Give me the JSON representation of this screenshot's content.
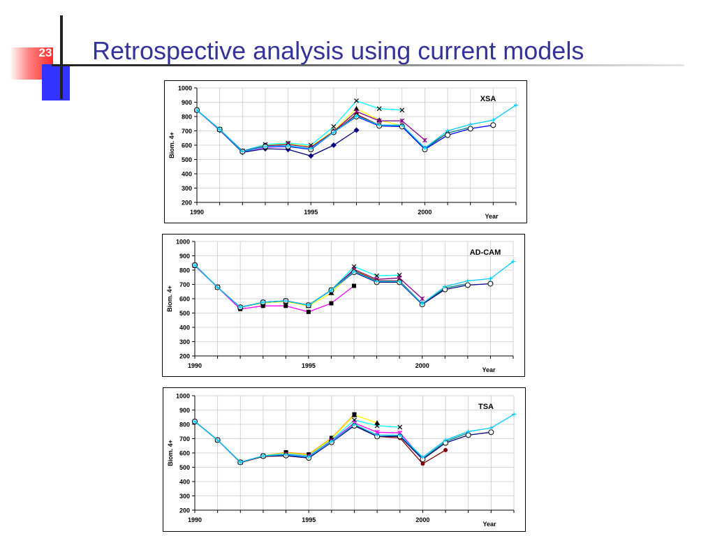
{
  "slide": {
    "number": "23",
    "title": "Retrospective analysis using current models"
  },
  "colors": {
    "title": "#333399",
    "accent_red": "#ff3333",
    "accent_blue": "#3333ff"
  },
  "chart_data": [
    {
      "type": "line",
      "title": "XSA",
      "xlabel": "Year",
      "ylabel": "Biom. 4+",
      "xlim": [
        1990,
        2004
      ],
      "ylim": [
        200,
        1000
      ],
      "yticks": [
        200,
        300,
        400,
        500,
        600,
        700,
        800,
        900,
        1000
      ],
      "xticks": [
        1990,
        1995,
        2000
      ],
      "grid": true,
      "legend": "none",
      "series": [
        {
          "color": "#000080",
          "marker": "diamond",
          "x": [
            1990,
            1991,
            1992,
            1993,
            1994,
            1995,
            1996,
            1997
          ],
          "y": [
            845,
            705,
            550,
            575,
            570,
            525,
            600,
            705
          ]
        },
        {
          "color": "#ff00ff",
          "marker": "square",
          "x": [
            1990,
            1991,
            1992,
            1993,
            1994,
            1995,
            1996,
            1997,
            1998
          ],
          "y": [
            845,
            708,
            555,
            585,
            590,
            575,
            695,
            810,
            735
          ]
        },
        {
          "color": "#ffff00",
          "marker": "triangle",
          "x": [
            1990,
            1991,
            1992,
            1993,
            1994,
            1995,
            1996,
            1997,
            1998,
            1999
          ],
          "y": [
            845,
            710,
            558,
            600,
            610,
            590,
            700,
            855,
            775,
            735
          ]
        },
        {
          "color": "#00ffff",
          "marker": "x",
          "x": [
            1990,
            1991,
            1992,
            1993,
            1994,
            1995,
            1996,
            1997,
            1998,
            1999
          ],
          "y": [
            845,
            710,
            560,
            605,
            615,
            600,
            730,
            910,
            855,
            845
          ]
        },
        {
          "color": "#800080",
          "marker": "star",
          "x": [
            1990,
            1991,
            1992,
            1993,
            1994,
            1995,
            1996,
            1997,
            1998,
            1999,
            2000
          ],
          "y": [
            845,
            710,
            558,
            595,
            605,
            585,
            695,
            835,
            770,
            770,
            635
          ]
        },
        {
          "color": "#800000",
          "marker": "circle",
          "x": [
            1990,
            1991,
            1992,
            1993,
            1994,
            1995,
            1996,
            1997,
            1998,
            1999,
            2000,
            2001
          ],
          "y": [
            845,
            710,
            555,
            590,
            595,
            575,
            690,
            815,
            740,
            740,
            580,
            685
          ]
        },
        {
          "color": "#008080",
          "marker": "none",
          "x": [
            1990,
            1991,
            1992,
            1993,
            1994,
            1995,
            1996,
            1997,
            1998,
            1999,
            2000,
            2001,
            2002
          ],
          "y": [
            845,
            710,
            555,
            590,
            595,
            575,
            690,
            805,
            735,
            735,
            575,
            685,
            725
          ]
        },
        {
          "color": "#0000ff",
          "marker": "open-circle",
          "x": [
            1990,
            1991,
            1992,
            1993,
            1994,
            1995,
            1996,
            1997,
            1998,
            1999,
            2000,
            2001,
            2002,
            2003
          ],
          "y": [
            845,
            710,
            555,
            590,
            590,
            570,
            690,
            800,
            735,
            730,
            570,
            670,
            715,
            740
          ]
        },
        {
          "color": "#00ccff",
          "marker": "plus",
          "x": [
            1990,
            1991,
            1992,
            1993,
            1994,
            1995,
            1996,
            1997,
            1998,
            1999,
            2000,
            2001,
            2002,
            2003,
            2004
          ],
          "y": [
            845,
            710,
            555,
            590,
            595,
            575,
            690,
            805,
            740,
            740,
            580,
            700,
            745,
            775,
            880
          ]
        }
      ]
    },
    {
      "type": "line",
      "title": "AD-CAM",
      "xlabel": "Year",
      "ylabel": "Biom. 4+",
      "xlim": [
        1990,
        2004
      ],
      "ylim": [
        200,
        1000
      ],
      "yticks": [
        200,
        300,
        400,
        500,
        600,
        700,
        800,
        900,
        1000
      ],
      "xticks": [
        1990,
        1995,
        2000
      ],
      "grid": true,
      "legend": "none",
      "series": [
        {
          "color": "#ff00ff",
          "marker": "square",
          "x": [
            1990,
            1991,
            1992,
            1993,
            1994,
            1995,
            1996,
            1997
          ],
          "y": [
            830,
            680,
            528,
            550,
            550,
            508,
            568,
            690
          ]
        },
        {
          "color": "#ffff00",
          "marker": "triangle",
          "x": [
            1990,
            1991,
            1992,
            1993,
            1994,
            1995,
            1996,
            1997,
            1998
          ],
          "y": [
            835,
            680,
            540,
            570,
            580,
            550,
            640,
            800,
            725
          ]
        },
        {
          "color": "#00ffff",
          "marker": "x",
          "x": [
            1990,
            1991,
            1992,
            1993,
            1994,
            1995,
            1996,
            1997,
            1998,
            1999
          ],
          "y": [
            835,
            680,
            540,
            575,
            585,
            555,
            660,
            825,
            760,
            765
          ]
        },
        {
          "color": "#800080",
          "marker": "star",
          "x": [
            1990,
            1991,
            1992,
            1993,
            1994,
            1995,
            1996,
            1997,
            1998,
            1999,
            2000
          ],
          "y": [
            835,
            680,
            540,
            575,
            585,
            555,
            660,
            805,
            735,
            745,
            600
          ]
        },
        {
          "color": "#800000",
          "marker": "circle",
          "x": [
            1990,
            1991,
            1992,
            1993,
            1994,
            1995,
            1996,
            1997,
            1998,
            1999,
            2000,
            2001
          ],
          "y": [
            835,
            680,
            540,
            575,
            585,
            555,
            660,
            795,
            725,
            725,
            565,
            670
          ]
        },
        {
          "color": "#008080",
          "marker": "none",
          "x": [
            1990,
            1991,
            1992,
            1993,
            1994,
            1995,
            1996,
            1997,
            1998,
            1999,
            2000,
            2001,
            2002
          ],
          "y": [
            835,
            680,
            540,
            575,
            585,
            555,
            660,
            790,
            720,
            720,
            560,
            675,
            705
          ]
        },
        {
          "color": "#000080",
          "marker": "open-circle",
          "x": [
            1990,
            1991,
            1992,
            1993,
            1994,
            1995,
            1996,
            1997,
            1998,
            1999,
            2000,
            2001,
            2002,
            2003
          ],
          "y": [
            835,
            680,
            540,
            575,
            585,
            555,
            660,
            785,
            715,
            715,
            560,
            665,
            695,
            705
          ]
        },
        {
          "color": "#00ccff",
          "marker": "plus",
          "x": [
            1990,
            1991,
            1992,
            1993,
            1994,
            1995,
            1996,
            1997,
            1998,
            1999,
            2000,
            2001,
            2002,
            2003,
            2004
          ],
          "y": [
            835,
            680,
            540,
            575,
            585,
            555,
            660,
            790,
            720,
            720,
            565,
            685,
            725,
            740,
            860
          ]
        }
      ]
    },
    {
      "type": "line",
      "title": "TSA",
      "xlabel": "Year",
      "ylabel": "Biom. 4+",
      "xlim": [
        1990,
        2004
      ],
      "ylim": [
        200,
        1000
      ],
      "yticks": [
        200,
        300,
        400,
        500,
        600,
        700,
        800,
        900,
        1000
      ],
      "xticks": [
        1990,
        1995,
        2000
      ],
      "grid": true,
      "legend": "none",
      "series": [
        {
          "color": "#ff8c00",
          "marker": "square",
          "x": [
            1990,
            1991,
            1992,
            1993,
            1994,
            1995,
            1996,
            1997
          ],
          "y": [
            820,
            690,
            535,
            580,
            605,
            590,
            705,
            870
          ]
        },
        {
          "color": "#ffff00",
          "marker": "triangle",
          "x": [
            1990,
            1991,
            1992,
            1993,
            1994,
            1995,
            1996,
            1997,
            1998
          ],
          "y": [
            820,
            690,
            535,
            580,
            600,
            585,
            700,
            865,
            810
          ]
        },
        {
          "color": "#00ffff",
          "marker": "x",
          "x": [
            1990,
            1991,
            1992,
            1993,
            1994,
            1995,
            1996,
            1997,
            1998,
            1999
          ],
          "y": [
            820,
            690,
            535,
            580,
            595,
            580,
            690,
            830,
            790,
            780
          ]
        },
        {
          "color": "#ff00ff",
          "marker": "star",
          "x": [
            1990,
            1991,
            1992,
            1993,
            1994,
            1995,
            1996,
            1997,
            1998,
            1999,
            2000
          ],
          "y": [
            820,
            690,
            535,
            578,
            590,
            575,
            685,
            810,
            745,
            740,
            560
          ]
        },
        {
          "color": "#800000",
          "marker": "circle",
          "x": [
            1990,
            1991,
            1992,
            1993,
            1994,
            1995,
            1996,
            1997,
            1998,
            1999,
            2000,
            2001
          ],
          "y": [
            820,
            690,
            532,
            575,
            580,
            565,
            675,
            795,
            715,
            705,
            525,
            620
          ]
        },
        {
          "color": "#008080",
          "marker": "none",
          "x": [
            1990,
            1991,
            1992,
            1993,
            1994,
            1995,
            1996,
            1997,
            1998,
            1999,
            2000,
            2001,
            2002
          ],
          "y": [
            820,
            690,
            535,
            578,
            585,
            570,
            680,
            800,
            725,
            720,
            560,
            680,
            740
          ]
        },
        {
          "color": "#000080",
          "marker": "open-circle",
          "x": [
            1990,
            1991,
            1992,
            1993,
            1994,
            1995,
            1996,
            1997,
            1998,
            1999,
            2000,
            2001,
            2002,
            2003
          ],
          "y": [
            820,
            690,
            535,
            578,
            582,
            565,
            675,
            790,
            715,
            715,
            555,
            670,
            725,
            745
          ]
        },
        {
          "color": "#00ccff",
          "marker": "plus",
          "x": [
            1990,
            1991,
            1992,
            1993,
            1994,
            1995,
            1996,
            1997,
            1998,
            1999,
            2000,
            2001,
            2002,
            2003,
            2004
          ],
          "y": [
            820,
            690,
            535,
            580,
            588,
            572,
            680,
            800,
            725,
            725,
            570,
            690,
            750,
            775,
            870
          ]
        }
      ]
    }
  ]
}
